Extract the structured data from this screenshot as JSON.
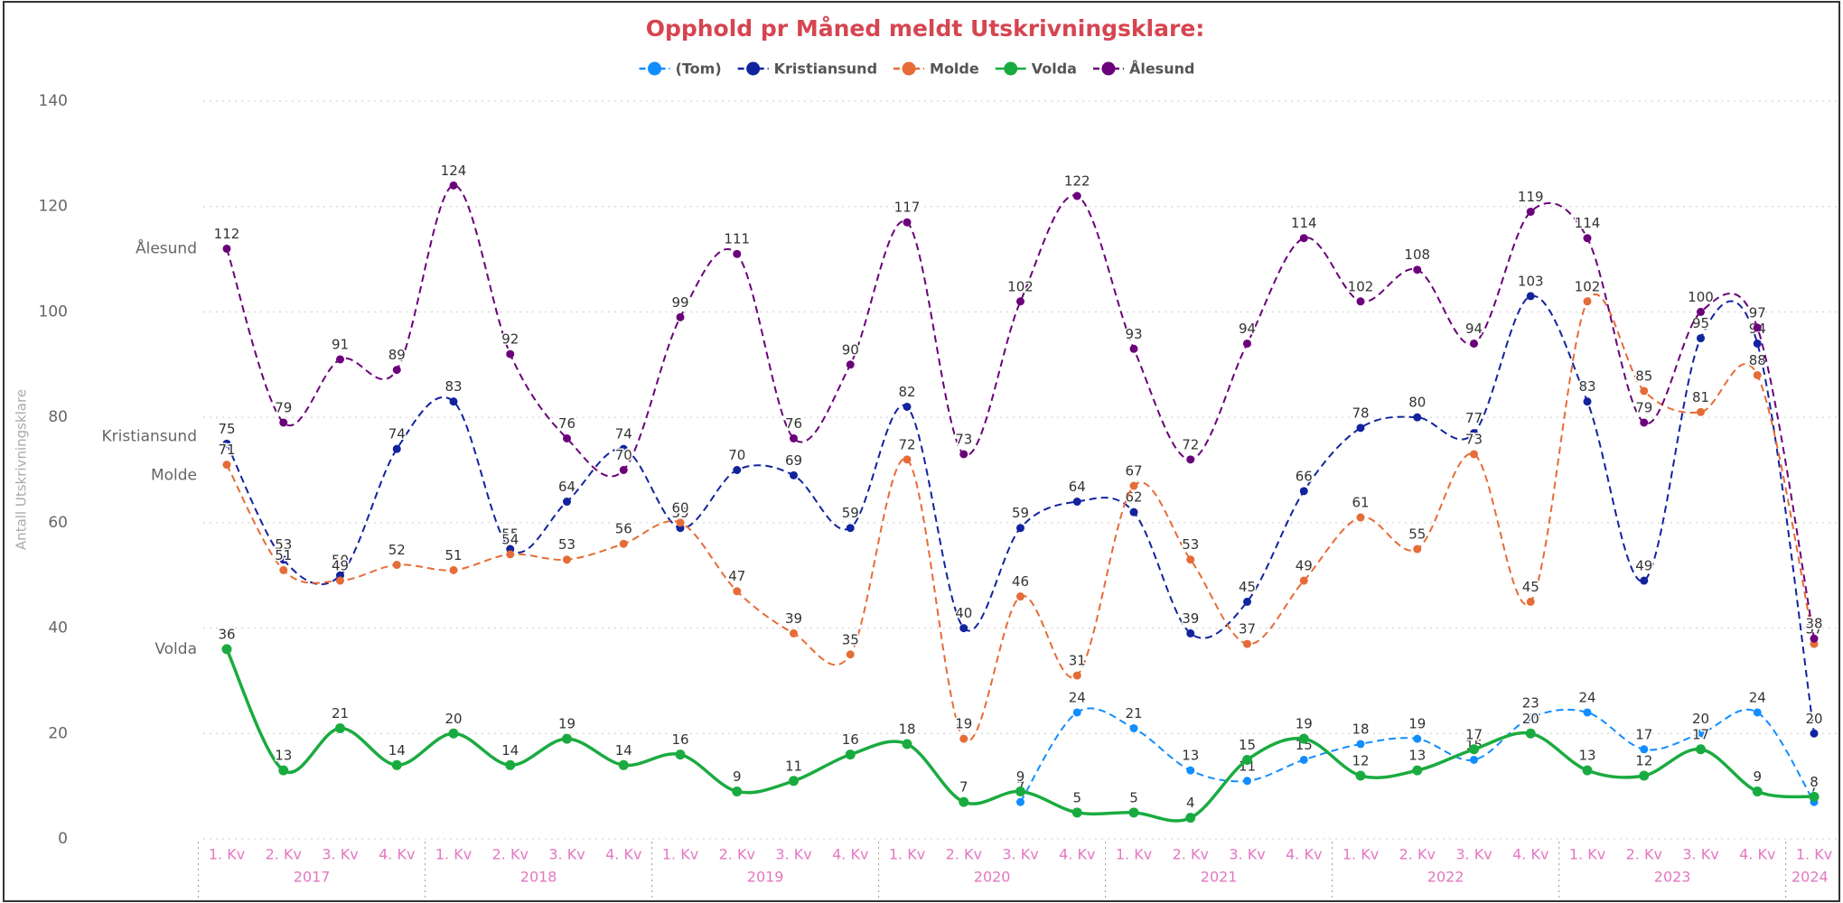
{
  "chart_data": {
    "type": "line",
    "title": "Opphold pr Måned meldt Utskrivningsklare:",
    "y_label": "Antall Utskrivningsklare",
    "categories": [
      "1. Kv",
      "2. Kv",
      "3. Kv",
      "4. Kv",
      "1. Kv",
      "2. Kv",
      "3. Kv",
      "4. Kv",
      "1. Kv",
      "2. Kv",
      "3. Kv",
      "4. Kv",
      "1. Kv",
      "2. Kv",
      "3. Kv",
      "4. Kv",
      "1. Kv",
      "2. Kv",
      "3. Kv",
      "4. Kv",
      "1. Kv",
      "2. Kv",
      "3. Kv",
      "4. Kv",
      "1. Kv",
      "2. Kv",
      "3. Kv",
      "4. Kv",
      "1. Kv"
    ],
    "years": [
      "2017",
      "2018",
      "2019",
      "2020",
      "2021",
      "2022",
      "2023",
      "2024"
    ],
    "ylim": [
      0,
      140
    ],
    "yticks": [
      0,
      20,
      40,
      60,
      80,
      100,
      120,
      140
    ],
    "grid": true,
    "legend": "top",
    "series": [
      {
        "name": "(Tom)",
        "color": "#118dff",
        "style": "dashed",
        "values": [
          null,
          null,
          null,
          null,
          null,
          null,
          null,
          null,
          null,
          null,
          null,
          null,
          null,
          null,
          7,
          24,
          21,
          13,
          11,
          15,
          18,
          19,
          15,
          23,
          24,
          17,
          20,
          24,
          7
        ]
      },
      {
        "name": "Kristiansund",
        "color": "#12239e",
        "style": "dashed",
        "values": [
          75,
          53,
          50,
          74,
          83,
          55,
          64,
          74,
          59,
          70,
          69,
          59,
          82,
          40,
          59,
          64,
          62,
          39,
          45,
          66,
          78,
          80,
          77,
          103,
          83,
          49,
          95,
          94,
          20
        ]
      },
      {
        "name": "Molde",
        "color": "#e66c37",
        "style": "dashed",
        "values": [
          71,
          51,
          49,
          52,
          51,
          54,
          53,
          56,
          60,
          47,
          39,
          35,
          72,
          19,
          46,
          31,
          67,
          53,
          37,
          49,
          61,
          55,
          73,
          45,
          102,
          85,
          81,
          88,
          37
        ]
      },
      {
        "name": "Volda",
        "color": "#1aab40",
        "style": "solid",
        "values": [
          36,
          13,
          21,
          14,
          20,
          14,
          19,
          14,
          16,
          9,
          11,
          16,
          18,
          7,
          9,
          5,
          5,
          4,
          15,
          19,
          12,
          13,
          17,
          20,
          13,
          12,
          17,
          9,
          8
        ]
      },
      {
        "name": "Ålesund",
        "color": "#6b007b",
        "style": "dashed",
        "values": [
          112,
          79,
          91,
          89,
          124,
          92,
          76,
          70,
          99,
          111,
          76,
          90,
          117,
          73,
          102,
          122,
          93,
          72,
          94,
          114,
          102,
          108,
          94,
          119,
          114,
          79,
          100,
          97,
          38
        ]
      }
    ]
  }
}
